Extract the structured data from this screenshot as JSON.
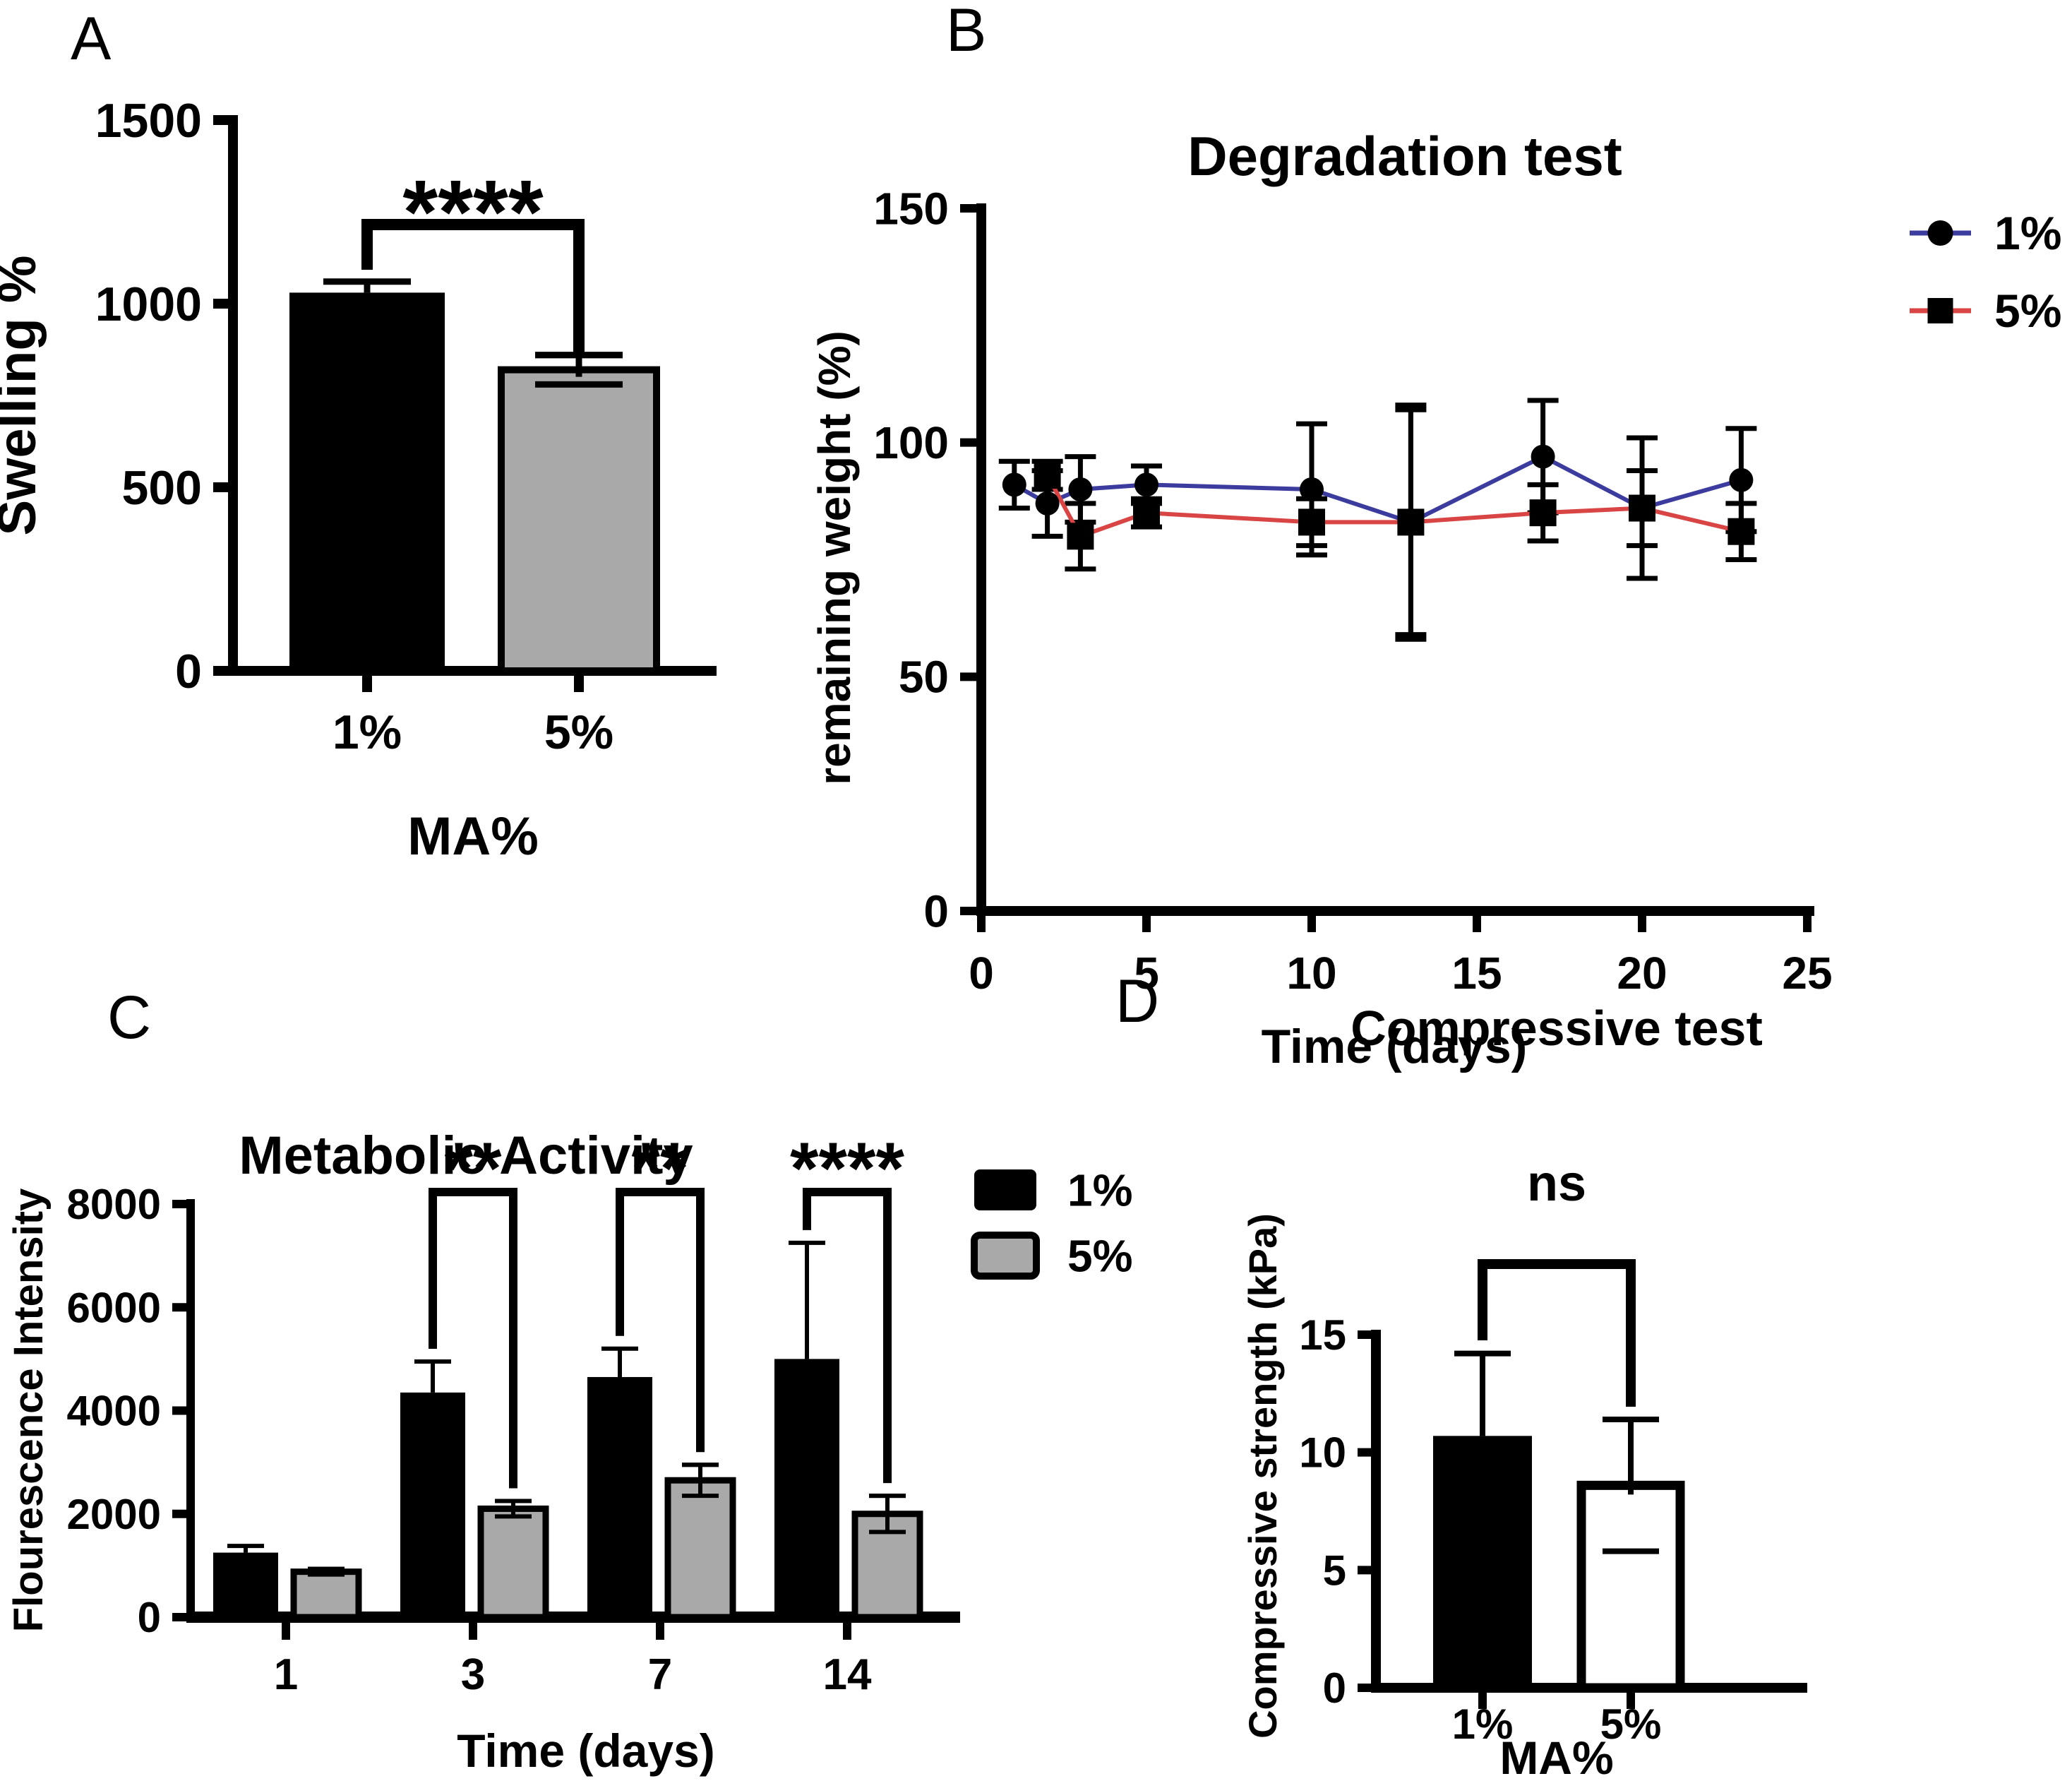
{
  "figure": {
    "background": "#ffffff",
    "panel_labels": {
      "a": "A",
      "b": "B",
      "c": "C",
      "d": "D"
    }
  },
  "colors": {
    "black_bar": "#000000",
    "gray_bar": "#a9a9a9",
    "line_1pct": "#3c3c9f",
    "line_5pct": "#d94545"
  },
  "chart_data": [
    {
      "id": "chart-a",
      "panel": "A",
      "type": "bar",
      "title": "",
      "ylabel": "Swelling %",
      "xlabel": "MA%",
      "ylim": [
        0,
        1500
      ],
      "yticks": [
        0,
        500,
        1000,
        1500
      ],
      "bars": [
        {
          "label": "1%",
          "value": 1030,
          "error": 30,
          "fill": "#000000"
        },
        {
          "label": "5%",
          "value": 820,
          "error": 40,
          "fill": "#a9a9a9",
          "stroke": "#000000"
        }
      ],
      "significance": {
        "label": "****",
        "between": [
          "1%",
          "5%"
        ]
      }
    },
    {
      "id": "chart-b",
      "panel": "B",
      "type": "line",
      "title": "Degradation test",
      "ylabel": "remaining weight (%)",
      "xlabel": "Time (days)",
      "xlim": [
        0,
        25
      ],
      "xticks": [
        0,
        5,
        10,
        15,
        20,
        25
      ],
      "ylim": [
        0,
        150
      ],
      "yticks": [
        0,
        50,
        100,
        150
      ],
      "series": [
        {
          "name": "1%",
          "color": "#3c3c9f",
          "marker": "circle",
          "x": [
            1,
            2,
            3,
            5,
            10,
            13,
            17,
            20,
            23
          ],
          "y": [
            91,
            87,
            90,
            91,
            90,
            83,
            97,
            86,
            92
          ],
          "err": [
            5,
            7,
            7,
            4,
            14,
            24,
            12,
            15,
            11
          ]
        },
        {
          "name": "5%",
          "color": "#d94545",
          "marker": "square",
          "x": [
            2,
            3,
            5,
            10,
            13,
            17,
            20,
            23
          ],
          "y": [
            93,
            80,
            85,
            83,
            83,
            85,
            86,
            81
          ],
          "err": [
            3,
            7,
            3,
            5,
            25,
            6,
            8,
            6
          ]
        }
      ],
      "legend": [
        {
          "label": "1%",
          "marker": "circle",
          "color": "#3c3c9f"
        },
        {
          "label": "5%",
          "marker": "square",
          "color": "#d94545"
        }
      ]
    },
    {
      "id": "chart-c",
      "panel": "C",
      "type": "grouped-bar",
      "title": "Metabolic Activity",
      "ylabel": "Flourescence Intensity",
      "xlabel": "Time (days)",
      "ylim": [
        0,
        8000
      ],
      "yticks": [
        0,
        2000,
        4000,
        6000,
        8000
      ],
      "categories": [
        "1",
        "3",
        "7",
        "14"
      ],
      "series": [
        {
          "name": "1%",
          "fill": "#000000",
          "values": [
            1250,
            4350,
            4650,
            5000
          ],
          "errors": [
            130,
            600,
            550,
            2250
          ]
        },
        {
          "name": "5%",
          "fill": "#a9a9a9",
          "stroke": "#000000",
          "values": [
            880,
            2100,
            2650,
            2000
          ],
          "errors": [
            55,
            150,
            300,
            350
          ]
        }
      ],
      "significance": [
        {
          "category": "3",
          "label": "**"
        },
        {
          "category": "7",
          "label": "**"
        },
        {
          "category": "14",
          "label": "****"
        }
      ],
      "legend": [
        {
          "label": "1%",
          "fill": "#000000"
        },
        {
          "label": "5%",
          "fill": "#a9a9a9",
          "stroke": "#000000"
        }
      ]
    },
    {
      "id": "chart-d",
      "panel": "D",
      "type": "bar",
      "title": "Compressive test",
      "ylabel": "Compressive strength (kPa)",
      "xlabel": "MA%",
      "ylim": [
        0,
        15
      ],
      "yticks": [
        0,
        5,
        10,
        15
      ],
      "bars": [
        {
          "label": "1%",
          "value": 10.7,
          "error": 3.5,
          "fill": "#000000"
        },
        {
          "label": "5%",
          "value": 8.6,
          "error": 2.8,
          "fill": "#ffffff",
          "stroke": "#000000"
        }
      ],
      "significance": {
        "label": "ns",
        "between": [
          "1%",
          "5%"
        ]
      }
    }
  ]
}
